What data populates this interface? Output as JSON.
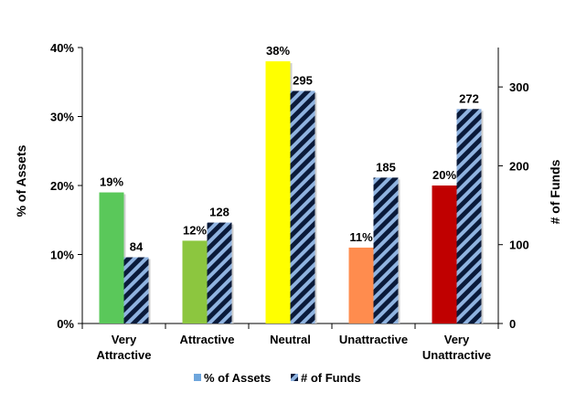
{
  "chart_data": {
    "type": "bar",
    "categories": [
      [
        "Very",
        "Attractive"
      ],
      [
        "Attractive"
      ],
      [
        "Neutral"
      ],
      [
        "Unattractive"
      ],
      [
        "Very",
        "Unattractive"
      ]
    ],
    "series": [
      {
        "name": "% of Assets",
        "axis": "left",
        "values": [
          19,
          12,
          38,
          11,
          20
        ],
        "labels": [
          "19%",
          "12%",
          "38%",
          "11%",
          "20%"
        ],
        "colors": [
          "#5ac85a",
          "#8cc63f",
          "#ffff00",
          "#ff8c4e",
          "#c00000"
        ]
      },
      {
        "name": "# of Funds",
        "axis": "right",
        "values": [
          84,
          128,
          295,
          185,
          272
        ],
        "labels": [
          "84",
          "128",
          "295",
          "185",
          "272"
        ],
        "pattern": "diagonal-stripes",
        "stripe_colors": [
          "#0a1a3a",
          "#8fb3e0"
        ]
      }
    ],
    "ylabel": "% of Assets",
    "y2label": "# of Funds",
    "ylim": [
      0,
      40
    ],
    "y2lim": [
      0,
      350
    ],
    "yticks": [
      "0%",
      "10%",
      "20%",
      "30%",
      "40%"
    ],
    "y2ticks": [
      "0",
      "100",
      "200",
      "300"
    ],
    "legend_position": "bottom",
    "grid": false
  },
  "legend": {
    "assets_label": "% of Assets",
    "funds_label": "# of Funds",
    "assets_color": "#6ea6dc"
  }
}
